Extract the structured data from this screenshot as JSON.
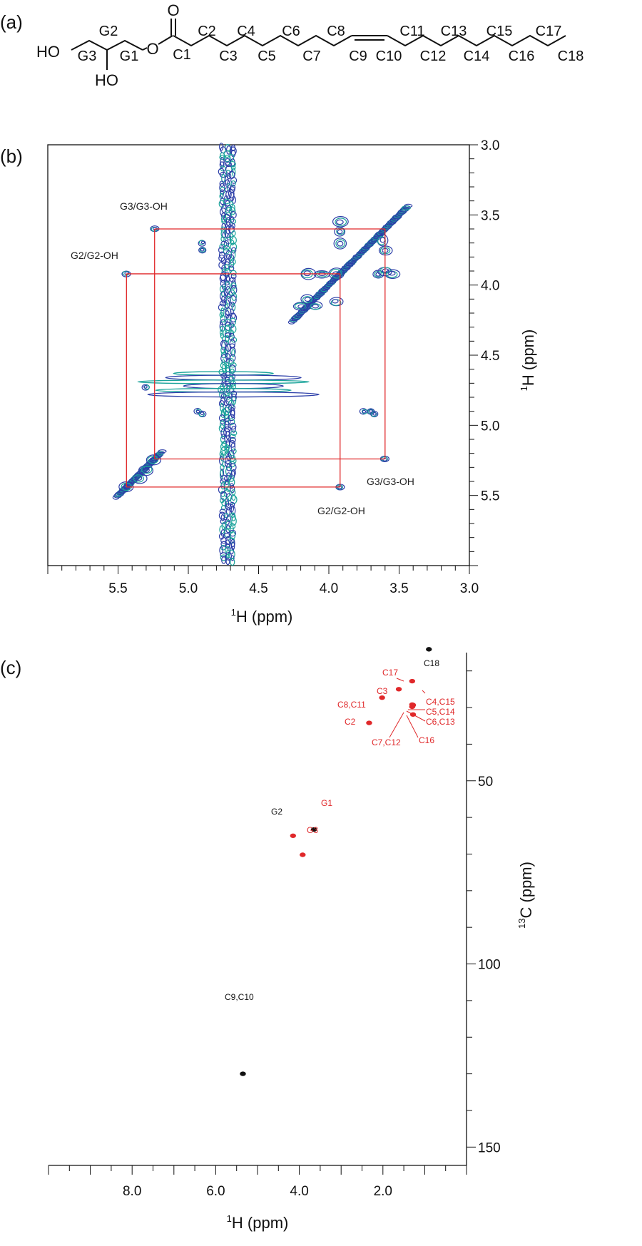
{
  "panels": {
    "a": {
      "label": "(a)",
      "atoms": {
        "ho_top": "HO",
        "ho_bottom": "HO",
        "oxygen_ester": "O",
        "oxygen_carbonyl": "O"
      },
      "glycerol_labels": [
        "G2",
        "G3",
        "G1"
      ],
      "carbon_labels": [
        "C1",
        "C2",
        "C3",
        "C4",
        "C5",
        "C6",
        "C7",
        "C8",
        "C9",
        "C10",
        "C11",
        "C12",
        "C13",
        "C14",
        "C15",
        "C16",
        "C17",
        "C18"
      ]
    },
    "b": {
      "label": "(b)",
      "x_axis_title": "1H (ppm)",
      "y_axis_title": "1H (ppm)",
      "x_ticks": [
        "5.5",
        "5.0",
        "4.5",
        "4.0",
        "3.5",
        "3.0"
      ],
      "y_ticks": [
        "3.0",
        "3.5",
        "4.0",
        "4.5",
        "5.0",
        "5.5"
      ],
      "annotations": [
        "G3/G3-OH",
        "G2/G2-OH",
        "G3/G3-OH",
        "G2/G2-OH"
      ]
    },
    "c": {
      "label": "(c)",
      "x_axis_title": "1H (ppm)",
      "y_axis_title": "13C (ppm)",
      "x_ticks": [
        "8.0",
        "6.0",
        "4.0",
        "2.0"
      ],
      "y_ticks": [
        "50",
        "100",
        "150"
      ],
      "peak_labels": {
        "C18": "C18",
        "C17": "C17",
        "C3": "C3",
        "C8C11": "C8,C11",
        "C2": "C2",
        "C4C15": "C4,C15",
        "C5C14": "C5,C14",
        "C6C13": "C6,C13",
        "C7C12": "C7,C12",
        "C16": "C16",
        "G1": "G1",
        "G2": "G2",
        "G3": "G3",
        "C9C10": "C9,C10"
      }
    }
  },
  "colors": {
    "contour_teal": "#1aa39a",
    "contour_blue": "#2c3ea8",
    "box_red": "#e0282a",
    "peak_red": "#e0282a",
    "peak_black": "#111111"
  },
  "chart_data": [
    {
      "type": "heatmap",
      "title": "",
      "xlabel": "1H (ppm)",
      "ylabel": "1H (ppm)",
      "xlim": [
        6.0,
        3.0
      ],
      "ylim": [
        3.0,
        6.0
      ],
      "diagonal_peaks_ppm": [
        5.44,
        5.24,
        4.15,
        3.92,
        3.6
      ],
      "cross_peaks": [
        {
          "label": "G3/G3-OH",
          "x": 5.24,
          "y": 3.6
        },
        {
          "label": "G2/G2-OH",
          "x": 5.44,
          "y": 3.92
        },
        {
          "label": "G3/G3-OH",
          "x": 3.6,
          "y": 5.24
        },
        {
          "label": "G2/G2-OH",
          "x": 3.92,
          "y": 5.44
        }
      ],
      "water_ridge_ppm": 4.72
    },
    {
      "type": "scatter",
      "title": "",
      "xlabel": "1H (ppm)",
      "ylabel": "13C (ppm)",
      "xlim": [
        10.0,
        0.0
      ],
      "ylim": [
        15,
        155
      ],
      "series": [
        {
          "points": [
            {
              "label": "C18",
              "x": 0.9,
              "y": 14.1,
              "color": "#111111"
            },
            {
              "label": "C17",
              "x": 1.3,
              "y": 22.8,
              "color": "#e0282a"
            },
            {
              "label": "C3",
              "x": 1.62,
              "y": 25.0,
              "color": "#e0282a"
            },
            {
              "label": "C8,C11",
              "x": 2.02,
              "y": 27.3,
              "color": "#e0282a"
            },
            {
              "label": "C2",
              "x": 2.33,
              "y": 34.2,
              "color": "#e0282a"
            },
            {
              "label": "C4,C15",
              "x": 1.28,
              "y": 29.3,
              "color": "#e0282a"
            },
            {
              "label": "C5,C14",
              "x": 1.29,
              "y": 29.5,
              "color": "#e0282a"
            },
            {
              "label": "C6,C13",
              "x": 1.3,
              "y": 29.8,
              "color": "#e0282a"
            },
            {
              "label": "C7,C12",
              "x": 1.3,
              "y": 29.2,
              "color": "#e0282a"
            },
            {
              "label": "C16",
              "x": 1.28,
              "y": 31.9,
              "color": "#e0282a"
            },
            {
              "label": "G1",
              "x": 4.15,
              "y": 65.0,
              "color": "#e0282a"
            },
            {
              "label": "G2",
              "x": 3.92,
              "y": 70.2,
              "color": "#e0282a"
            },
            {
              "label": "G3",
              "x": 3.65,
              "y": 63.3,
              "color": "#111111"
            },
            {
              "label": "C9,C10",
              "x": 5.35,
              "y": 130.0,
              "color": "#111111"
            }
          ]
        }
      ]
    }
  ]
}
